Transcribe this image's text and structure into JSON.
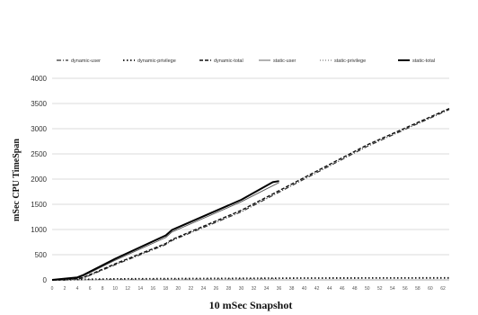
{
  "chart_data": {
    "type": "line",
    "xlabel": "10 mSec Snapshot",
    "ylabel": "mSec CPU TimeSpan",
    "xlim": [
      0,
      63
    ],
    "ylim": [
      0,
      4000
    ],
    "yticks": [
      0,
      500,
      1000,
      1500,
      2000,
      2500,
      3000,
      3500,
      4000
    ],
    "xticks": [
      0,
      2,
      4,
      6,
      8,
      10,
      12,
      14,
      16,
      18,
      20,
      22,
      24,
      26,
      28,
      30,
      32,
      34,
      36,
      38,
      40,
      42,
      44,
      46,
      48,
      50,
      52,
      54,
      56,
      58,
      60,
      62
    ],
    "grid": "horizontal",
    "legend_position": "top",
    "series": [
      {
        "name": "dynamic-user",
        "style": "dashdot",
        "color": "#333333",
        "x": [
          0,
          2,
          4,
          5,
          10,
          18,
          19,
          30,
          40,
          50,
          63
        ],
        "y": [
          0,
          0,
          20,
          40,
          300,
          700,
          780,
          1350,
          2000,
          2650,
          3380
        ]
      },
      {
        "name": "dynamic-privilege",
        "style": "dotted-bold",
        "color": "#111111",
        "x": [
          0,
          10,
          20,
          30,
          40,
          50,
          63
        ],
        "y": [
          0,
          20,
          25,
          30,
          35,
          38,
          40
        ]
      },
      {
        "name": "dynamic-total",
        "style": "dashed",
        "color": "#111111",
        "x": [
          0,
          2,
          4,
          5,
          10,
          18,
          19,
          30,
          40,
          50,
          63
        ],
        "y": [
          0,
          0,
          25,
          50,
          320,
          720,
          800,
          1380,
          2030,
          2680,
          3400
        ]
      },
      {
        "name": "static-user",
        "style": "solid-thin",
        "color": "#555555",
        "x": [
          0,
          2,
          4,
          5,
          10,
          18,
          19,
          30,
          35,
          36
        ],
        "y": [
          0,
          20,
          40,
          80,
          390,
          840,
          950,
          1550,
          1870,
          1930
        ]
      },
      {
        "name": "static-privilege",
        "style": "dotted",
        "color": "#666666",
        "x": [
          0,
          10,
          20,
          30,
          36
        ],
        "y": [
          0,
          10,
          15,
          18,
          20
        ]
      },
      {
        "name": "static-total",
        "style": "solid-bold",
        "color": "#000000",
        "x": [
          0,
          2,
          4,
          5,
          10,
          18,
          19,
          30,
          35,
          36
        ],
        "y": [
          0,
          25,
          50,
          100,
          420,
          880,
          990,
          1590,
          1940,
          1960
        ]
      }
    ]
  }
}
